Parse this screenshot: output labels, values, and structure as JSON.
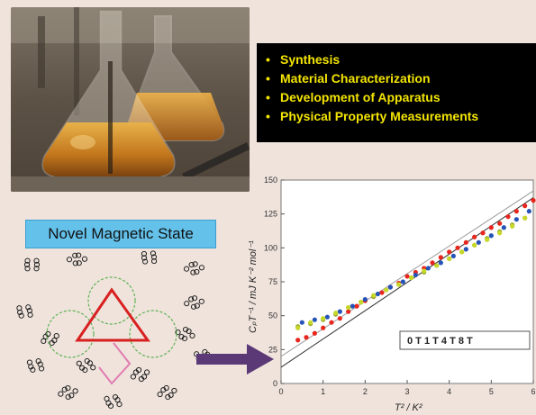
{
  "bullets": {
    "items": [
      "Synthesis",
      "Material Characterization",
      "Development of Apparatus",
      "Physical Property Measurements"
    ],
    "text_color": "#f3e500",
    "background": "#000000"
  },
  "magnetic": {
    "title": "Novel Magnetic State",
    "title_bg": "#63c1ea"
  },
  "photo": {
    "subject": "Erlenmeyer flasks with amber liquid"
  },
  "chart_data": {
    "type": "scatter",
    "xlabel": "T² / K²",
    "ylabel": "CₚT⁻¹ / mJ K⁻² mol⁻¹",
    "xlim": [
      0,
      6
    ],
    "ylim": [
      0,
      150
    ],
    "xticks": [
      "0",
      "1",
      "2",
      "3",
      "4",
      "5",
      "6"
    ],
    "yticks": [
      "0",
      "25",
      "50",
      "75",
      "100",
      "125",
      "150"
    ],
    "legend_text": "0 T  1 T  4 T  8 T",
    "legend_position": "bottom-right",
    "series": [
      {
        "name": "0 T",
        "color": "#e8261e",
        "x": [
          0.4,
          0.6,
          0.8,
          1.0,
          1.2,
          1.4,
          1.6,
          1.8,
          2.0,
          2.2,
          2.4,
          2.6,
          2.8,
          3.0,
          3.2,
          3.4,
          3.6,
          3.8,
          4.0,
          4.2,
          4.4,
          4.6,
          4.8,
          5.0,
          5.2,
          5.4,
          5.6,
          5.8,
          6.0
        ],
        "y": [
          32,
          34,
          37,
          41,
          45,
          48,
          53,
          57,
          61,
          64,
          67,
          71,
          74,
          79,
          82,
          85,
          89,
          93,
          97,
          100,
          104,
          108,
          111,
          115,
          118,
          123,
          127,
          131,
          135
        ]
      },
      {
        "name": "1 T",
        "color": "#9aa832",
        "x": [
          0.4,
          0.7,
          1.0,
          1.3,
          1.6,
          1.9,
          2.2,
          2.5,
          2.8,
          3.1,
          3.4,
          3.7,
          4.0,
          4.3,
          4.6,
          4.9,
          5.2,
          5.5,
          5.8
        ],
        "y": [
          42,
          44,
          47,
          51,
          56,
          60,
          64,
          69,
          73,
          78,
          82,
          87,
          92,
          97,
          102,
          107,
          112,
          117,
          122
        ]
      },
      {
        "name": "4 T",
        "color": "#2653b8",
        "x": [
          0.5,
          0.8,
          1.1,
          1.4,
          1.7,
          2.0,
          2.3,
          2.6,
          2.9,
          3.2,
          3.5,
          3.8,
          4.1,
          4.4,
          4.7,
          5.0,
          5.3,
          5.6,
          5.9
        ],
        "y": [
          45,
          47,
          49,
          53,
          57,
          62,
          66,
          71,
          75,
          80,
          85,
          89,
          94,
          99,
          104,
          109,
          115,
          121,
          127
        ]
      },
      {
        "name": "8 T",
        "color": "#c7d82a",
        "x": [
          0.4,
          0.7,
          1.0,
          1.3,
          1.6,
          1.9,
          2.2,
          2.5,
          2.8,
          3.1,
          3.4,
          3.7,
          4.0,
          4.3,
          4.6,
          4.9,
          5.2,
          5.5,
          5.8
        ],
        "y": [
          41,
          45,
          48,
          52,
          56,
          60,
          65,
          69,
          73,
          78,
          83,
          87,
          92,
          97,
          102,
          106,
          111,
          116,
          122
        ]
      }
    ],
    "fit_lines": [
      {
        "x": [
          0,
          6
        ],
        "y": [
          12,
          137
        ],
        "color": "#333333"
      },
      {
        "x": [
          0,
          6
        ],
        "y": [
          20,
          142
        ],
        "color": "#999999"
      }
    ]
  }
}
